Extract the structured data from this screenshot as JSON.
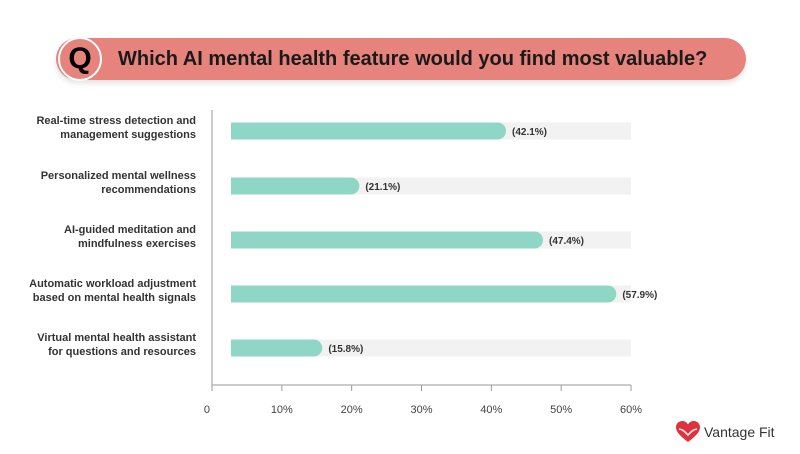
{
  "question": {
    "badge": "Q",
    "text": "Which AI mental health feature would you find most valuable?"
  },
  "brand": {
    "name": "Vantage Fit",
    "logo_icon": "heart-icon",
    "logo_color": "#e0313e"
  },
  "colors": {
    "bar": "#8fd6c6",
    "track": "#f2f2f2",
    "banner": "#e5837c"
  },
  "chart_data": {
    "type": "bar",
    "orientation": "horizontal",
    "categories": [
      [
        "Real-time stress detection and",
        "management suggestions"
      ],
      [
        "Personalized mental wellness",
        "recommendations"
      ],
      [
        "AI-guided meditation and",
        "mindfulness exercises"
      ],
      [
        "Automatic workload adjustment",
        "based on mental health signals"
      ],
      [
        "Virtual mental health assistant",
        "for questions and resources"
      ]
    ],
    "values": [
      42.1,
      21.1,
      47.4,
      57.9,
      15.8
    ],
    "value_labels": [
      "(42.1%)",
      "(21.1%)",
      "(47.4%)",
      "(57.9%)",
      "(15.8%)"
    ],
    "xlim": [
      0,
      60
    ],
    "ticks": [
      0,
      10,
      20,
      30,
      40,
      50,
      60
    ],
    "tick_labels": [
      "0",
      "10%",
      "20%",
      "30%",
      "40%",
      "50%",
      "60%"
    ],
    "grid": false,
    "legend": "none"
  }
}
